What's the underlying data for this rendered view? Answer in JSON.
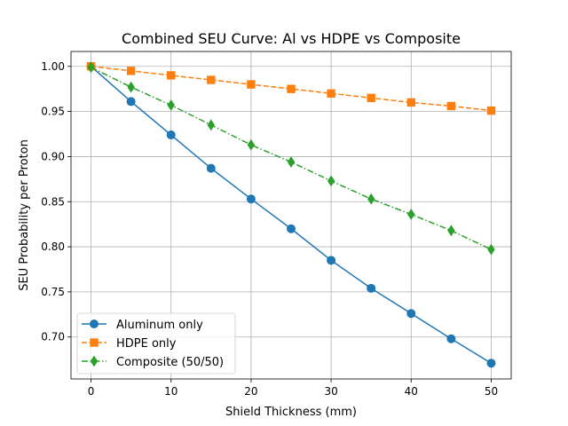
{
  "chart_data": {
    "type": "line",
    "title": "Combined SEU Curve: Al vs HDPE vs Composite",
    "xlabel": "Shield Thickness (mm)",
    "ylabel": "SEU Probability per Proton",
    "xlim": [
      -2.5,
      52.5
    ],
    "ylim": [
      0.6535,
      1.0165
    ],
    "xticks": [
      0,
      10,
      20,
      30,
      40,
      50
    ],
    "yticks": [
      0.7,
      0.75,
      0.8,
      0.85,
      0.9,
      0.95,
      1.0
    ],
    "ytick_labels": [
      "0.70",
      "0.75",
      "0.80",
      "0.85",
      "0.90",
      "0.95",
      "1.00"
    ],
    "grid": true,
    "legend_position": "lower-left",
    "x": [
      0,
      5,
      10,
      15,
      20,
      25,
      30,
      35,
      40,
      45,
      50
    ],
    "series": [
      {
        "name": "Aluminum only",
        "color": "#1f77b4",
        "linestyle": "solid",
        "marker": "circle",
        "values": [
          1.0,
          0.961,
          0.924,
          0.887,
          0.853,
          0.82,
          0.785,
          0.754,
          0.726,
          0.698,
          0.671
        ]
      },
      {
        "name": "HDPE only",
        "color": "#ff7f0e",
        "linestyle": "dashed",
        "marker": "square",
        "values": [
          1.0,
          0.995,
          0.99,
          0.985,
          0.98,
          0.975,
          0.97,
          0.965,
          0.96,
          0.956,
          0.951
        ]
      },
      {
        "name": "Composite (50/50)",
        "color": "#2ca02c",
        "linestyle": "dashdot",
        "marker": "diamond",
        "values": [
          0.999,
          0.977,
          0.957,
          0.935,
          0.913,
          0.894,
          0.873,
          0.853,
          0.836,
          0.818,
          0.797
        ]
      }
    ]
  }
}
